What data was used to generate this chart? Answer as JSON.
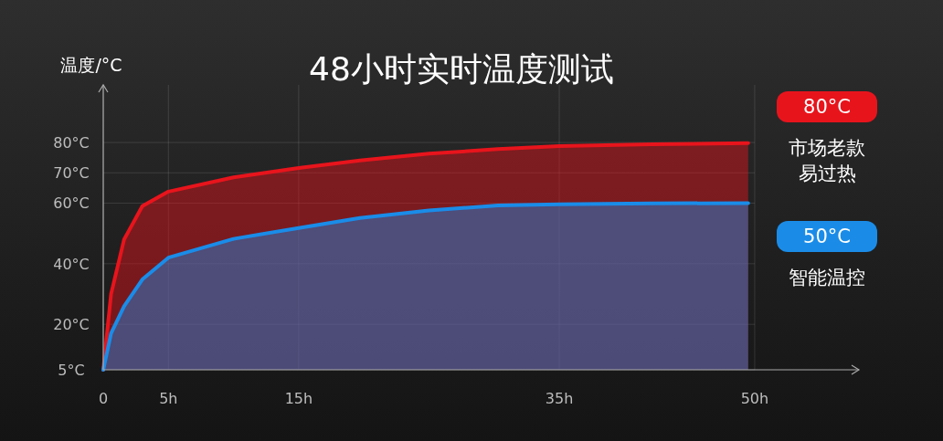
{
  "chart_data": {
    "type": "area",
    "title": "48小时实时温度测试",
    "ylabel": "温度/°C",
    "xlim": [
      0,
      58
    ],
    "xticks": [
      {
        "value": 0,
        "label": "0"
      },
      {
        "value": 5,
        "label": "5h"
      },
      {
        "value": 15,
        "label": "15h"
      },
      {
        "value": 35,
        "label": "35h"
      },
      {
        "value": 50,
        "label": "50h"
      }
    ],
    "ylim": [
      5,
      99
    ],
    "yticks": [
      {
        "value": 5,
        "label": "5°C"
      },
      {
        "value": 20,
        "label": "20°C"
      },
      {
        "value": 40,
        "label": "40°C"
      },
      {
        "value": 60,
        "label": "60°C"
      },
      {
        "value": 70,
        "label": "70°C"
      },
      {
        "value": 80,
        "label": "80°C"
      }
    ],
    "grid": true,
    "series": [
      {
        "name": "市场老款易过热",
        "color": "#e8141c",
        "x": [
          0,
          0.6,
          1.6,
          3,
          5,
          10,
          15,
          19.7,
          25,
          30.3,
          35,
          42.1,
          49.5
        ],
        "values": [
          5,
          30,
          48,
          59,
          63.8,
          68.5,
          71.6,
          74.1,
          76.3,
          77.8,
          78.8,
          79.4,
          79.8
        ]
      },
      {
        "name": "智能温控",
        "color": "#1a8ce8",
        "x": [
          0,
          0.6,
          1.6,
          3,
          5,
          10,
          15,
          19.7,
          25,
          30.3,
          35,
          42.1,
          49.5
        ],
        "values": [
          5,
          17,
          26,
          34.8,
          42,
          48.2,
          51.8,
          55.1,
          57.6,
          59.2,
          59.6,
          59.9,
          60
        ]
      }
    ],
    "annotations": [
      "80°C",
      "50°C"
    ]
  }
}
